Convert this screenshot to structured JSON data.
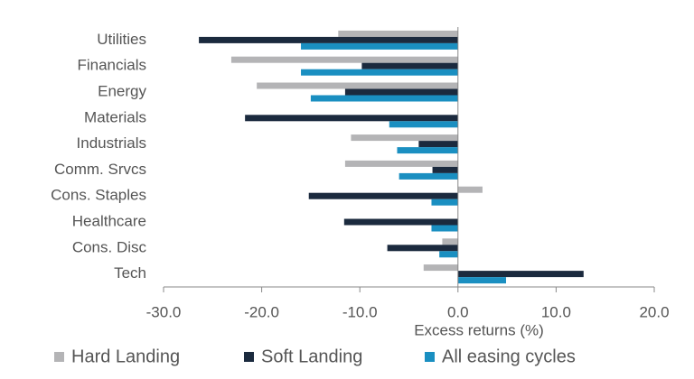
{
  "chart_data": {
    "type": "hbar",
    "categories": [
      "Utilities",
      "Financials",
      "Energy",
      "Materials",
      "Industrials",
      "Comm. Srvcs",
      "Cons. Staples",
      "Healthcare",
      "Cons. Disc",
      "Tech"
    ],
    "series": [
      {
        "name": "Hard Landing",
        "color": "#b4b4b6",
        "values": [
          -12.2,
          -23.1,
          -20.5,
          0,
          -10.9,
          -11.5,
          2.5,
          0,
          -1.6,
          -3.5
        ]
      },
      {
        "name": "Soft Landing",
        "color": "#1b2a3e",
        "values": [
          -26.4,
          -9.8,
          -11.5,
          -21.7,
          -4.0,
          -2.6,
          -15.2,
          -11.6,
          -7.2,
          12.8
        ]
      },
      {
        "name": "All easing cycles",
        "color": "#1a8fc1",
        "values": [
          -16.0,
          -16.0,
          -15.0,
          -7.0,
          -6.2,
          -6.0,
          -2.7,
          -2.7,
          -1.9,
          4.9
        ]
      }
    ],
    "x_label": "Excess returns (%)",
    "xlim": [
      -30,
      20
    ],
    "xticks": [
      {
        "value": -30,
        "label": "-30.0"
      },
      {
        "value": -20,
        "label": "-20.0"
      },
      {
        "value": -10,
        "label": "-10.0"
      },
      {
        "value": 0,
        "label": "0.0"
      },
      {
        "value": 10,
        "label": "10.0"
      },
      {
        "value": 20,
        "label": "20.0"
      }
    ],
    "legend": "bottom"
  }
}
